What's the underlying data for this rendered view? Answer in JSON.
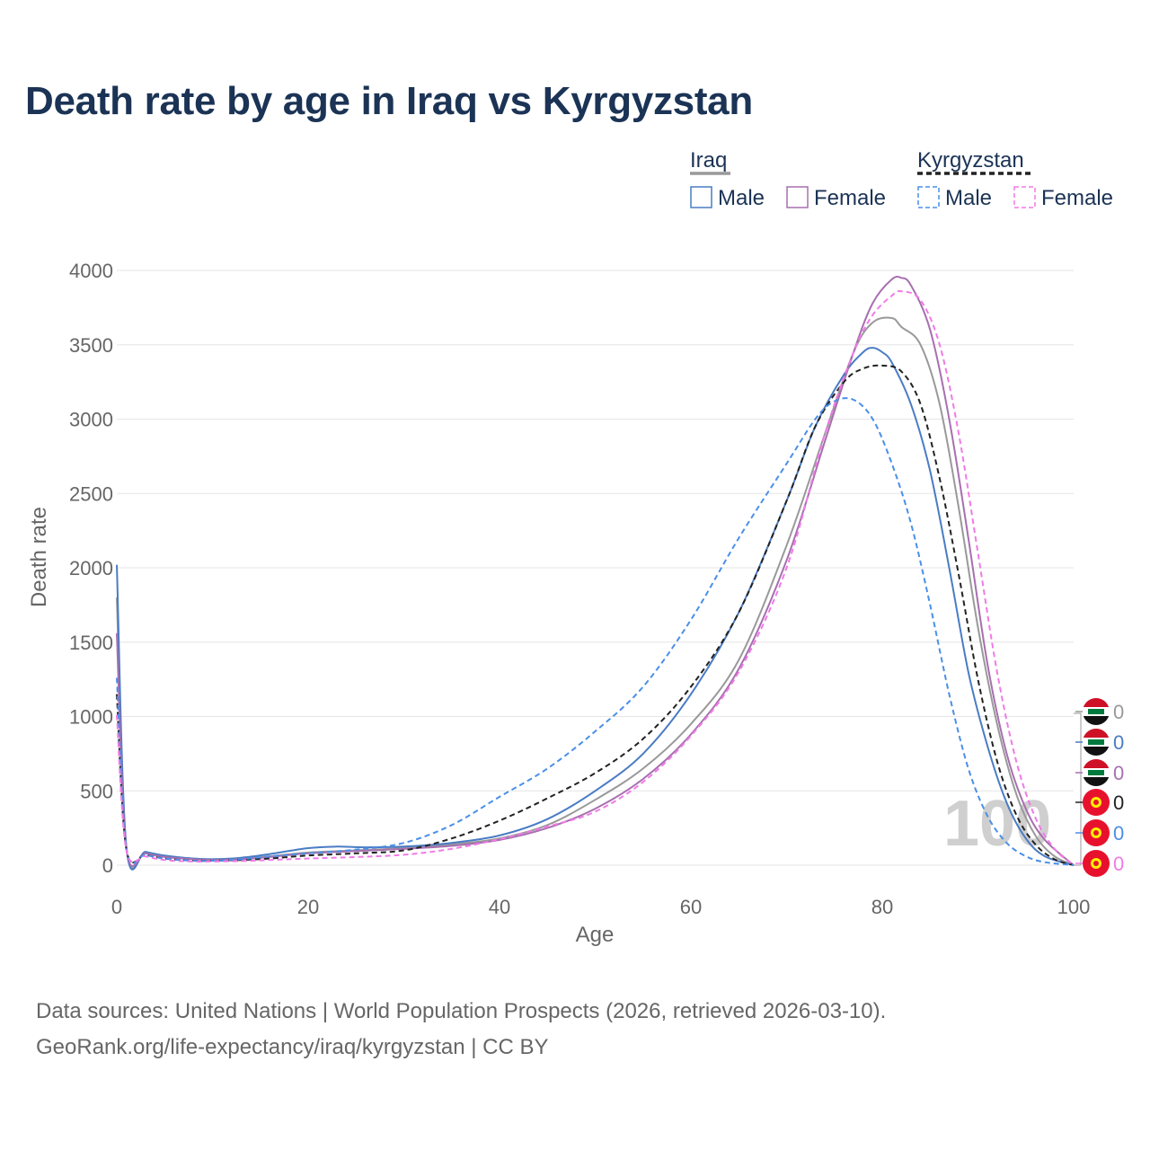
{
  "title": "Death rate by age in Iraq vs Kyrgyzstan",
  "footer": {
    "source": "Data sources: United Nations | World Population Prospects (2026, retrieved 2026-03-10).",
    "link": "GeoRank.org/life-expectancy/iraq/kyrgyzstan | CC BY"
  },
  "legend": {
    "groups": [
      {
        "label": "Iraq",
        "swatch_color": "#999999",
        "swatch_dash": "solid"
      },
      {
        "label": "Kyrgyzstan",
        "swatch_color": "#222222",
        "swatch_dash": "dashed"
      }
    ],
    "items": [
      {
        "label": "Male",
        "color": "#4a7cc4",
        "dash": "solid"
      },
      {
        "label": "Female",
        "color": "#a86fb0",
        "dash": "solid"
      },
      {
        "label": "Male",
        "color": "#4a8fe8",
        "dash": "dashed"
      },
      {
        "label": "Female",
        "color": "#f07ae6",
        "dash": "dashed"
      }
    ]
  },
  "year_label": "100",
  "chart_data": {
    "type": "line",
    "title": "Death rate by age in Iraq vs Kyrgyzstan",
    "xlabel": "Age",
    "ylabel": "Death rate",
    "xlim": [
      0,
      100
    ],
    "ylim": [
      0,
      4000
    ],
    "xticks": [
      0,
      20,
      40,
      60,
      80,
      100
    ],
    "yticks": [
      0,
      500,
      1000,
      1500,
      2000,
      2500,
      3000,
      3500,
      4000
    ],
    "grid": true,
    "series": [
      {
        "name": "Iraq",
        "color": "#999999",
        "dash": "solid",
        "end_label": "0",
        "flag": "iraq",
        "points": [
          [
            0,
            1800
          ],
          [
            1,
            115
          ],
          [
            3,
            85
          ],
          [
            5,
            60
          ],
          [
            8,
            45
          ],
          [
            10,
            40
          ],
          [
            13,
            45
          ],
          [
            16,
            60
          ],
          [
            20,
            85
          ],
          [
            25,
            100
          ],
          [
            30,
            115
          ],
          [
            35,
            140
          ],
          [
            40,
            180
          ],
          [
            45,
            270
          ],
          [
            50,
            440
          ],
          [
            55,
            650
          ],
          [
            60,
            950
          ],
          [
            65,
            1380
          ],
          [
            70,
            2150
          ],
          [
            74,
            2900
          ],
          [
            77,
            3450
          ],
          [
            79,
            3650
          ],
          [
            81,
            3680
          ],
          [
            82,
            3620
          ],
          [
            84,
            3500
          ],
          [
            86,
            3100
          ],
          [
            88,
            2400
          ],
          [
            90,
            1600
          ],
          [
            92,
            950
          ],
          [
            94,
            480
          ],
          [
            96,
            200
          ],
          [
            98,
            60
          ],
          [
            100,
            0
          ]
        ]
      },
      {
        "name": "Iraq Male",
        "color": "#4a7cc4",
        "dash": "solid",
        "end_label": "0",
        "flag": "iraq",
        "points": [
          [
            0,
            2020
          ],
          [
            1,
            120
          ],
          [
            3,
            90
          ],
          [
            5,
            65
          ],
          [
            8,
            45
          ],
          [
            10,
            40
          ],
          [
            13,
            50
          ],
          [
            16,
            75
          ],
          [
            20,
            115
          ],
          [
            23,
            125
          ],
          [
            26,
            120
          ],
          [
            30,
            125
          ],
          [
            35,
            150
          ],
          [
            40,
            200
          ],
          [
            45,
            310
          ],
          [
            50,
            500
          ],
          [
            55,
            750
          ],
          [
            60,
            1150
          ],
          [
            65,
            1700
          ],
          [
            70,
            2450
          ],
          [
            73,
            2950
          ],
          [
            76,
            3300
          ],
          [
            78,
            3450
          ],
          [
            79,
            3480
          ],
          [
            80,
            3450
          ],
          [
            81,
            3380
          ],
          [
            83,
            3100
          ],
          [
            85,
            2650
          ],
          [
            87,
            2000
          ],
          [
            89,
            1300
          ],
          [
            91,
            800
          ],
          [
            93,
            420
          ],
          [
            95,
            180
          ],
          [
            97,
            60
          ],
          [
            100,
            0
          ]
        ]
      },
      {
        "name": "Iraq Female",
        "color": "#a86fb0",
        "dash": "solid",
        "end_label": "0",
        "flag": "iraq",
        "points": [
          [
            0,
            1560
          ],
          [
            1,
            110
          ],
          [
            3,
            80
          ],
          [
            5,
            55
          ],
          [
            8,
            40
          ],
          [
            10,
            35
          ],
          [
            13,
            40
          ],
          [
            16,
            55
          ],
          [
            20,
            80
          ],
          [
            25,
            95
          ],
          [
            30,
            110
          ],
          [
            35,
            130
          ],
          [
            40,
            170
          ],
          [
            45,
            250
          ],
          [
            50,
            380
          ],
          [
            55,
            580
          ],
          [
            60,
            880
          ],
          [
            65,
            1320
          ],
          [
            70,
            2050
          ],
          [
            74,
            2850
          ],
          [
            77,
            3450
          ],
          [
            79,
            3780
          ],
          [
            81,
            3940
          ],
          [
            82,
            3950
          ],
          [
            83,
            3900
          ],
          [
            85,
            3600
          ],
          [
            87,
            3000
          ],
          [
            89,
            2200
          ],
          [
            91,
            1350
          ],
          [
            93,
            750
          ],
          [
            95,
            380
          ],
          [
            97,
            170
          ],
          [
            100,
            0
          ]
        ]
      },
      {
        "name": "Kyrgyzstan",
        "color": "#222222",
        "dash": "dashed",
        "end_label": "0",
        "flag": "kyrgyzstan",
        "points": [
          [
            0,
            1150
          ],
          [
            1,
            105
          ],
          [
            3,
            70
          ],
          [
            5,
            45
          ],
          [
            8,
            30
          ],
          [
            10,
            30
          ],
          [
            13,
            35
          ],
          [
            16,
            45
          ],
          [
            20,
            65
          ],
          [
            25,
            80
          ],
          [
            30,
            100
          ],
          [
            35,
            180
          ],
          [
            40,
            300
          ],
          [
            45,
            450
          ],
          [
            50,
            620
          ],
          [
            55,
            850
          ],
          [
            60,
            1200
          ],
          [
            65,
            1700
          ],
          [
            70,
            2450
          ],
          [
            73,
            2950
          ],
          [
            76,
            3250
          ],
          [
            78,
            3340
          ],
          [
            80,
            3360
          ],
          [
            82,
            3320
          ],
          [
            84,
            3100
          ],
          [
            86,
            2600
          ],
          [
            88,
            1950
          ],
          [
            90,
            1250
          ],
          [
            92,
            700
          ],
          [
            94,
            340
          ],
          [
            96,
            140
          ],
          [
            98,
            40
          ],
          [
            100,
            0
          ]
        ]
      },
      {
        "name": "Kyrgyzstan Male",
        "color": "#4a8fe8",
        "dash": "dashed",
        "end_label": "0",
        "flag": "kyrgyzstan",
        "points": [
          [
            0,
            1260
          ],
          [
            1,
            110
          ],
          [
            3,
            70
          ],
          [
            5,
            45
          ],
          [
            8,
            30
          ],
          [
            10,
            30
          ],
          [
            13,
            40
          ],
          [
            16,
            60
          ],
          [
            20,
            80
          ],
          [
            25,
            105
          ],
          [
            30,
            150
          ],
          [
            35,
            270
          ],
          [
            40,
            460
          ],
          [
            45,
            650
          ],
          [
            50,
            900
          ],
          [
            55,
            1200
          ],
          [
            60,
            1650
          ],
          [
            65,
            2200
          ],
          [
            70,
            2700
          ],
          [
            73,
            3000
          ],
          [
            75,
            3120
          ],
          [
            77,
            3130
          ],
          [
            79,
            3000
          ],
          [
            81,
            2700
          ],
          [
            83,
            2300
          ],
          [
            85,
            1750
          ],
          [
            87,
            1150
          ],
          [
            89,
            650
          ],
          [
            91,
            330
          ],
          [
            93,
            150
          ],
          [
            95,
            60
          ],
          [
            97,
            20
          ],
          [
            100,
            0
          ]
        ]
      },
      {
        "name": "Kyrgyzstan Female",
        "color": "#f07ae6",
        "dash": "dashed",
        "end_label": "0",
        "flag": "kyrgyzstan",
        "points": [
          [
            0,
            1010
          ],
          [
            1,
            100
          ],
          [
            3,
            60
          ],
          [
            5,
            35
          ],
          [
            8,
            25
          ],
          [
            10,
            25
          ],
          [
            13,
            28
          ],
          [
            16,
            35
          ],
          [
            20,
            45
          ],
          [
            25,
            55
          ],
          [
            30,
            70
          ],
          [
            35,
            110
          ],
          [
            40,
            175
          ],
          [
            45,
            260
          ],
          [
            50,
            360
          ],
          [
            55,
            560
          ],
          [
            60,
            870
          ],
          [
            65,
            1300
          ],
          [
            70,
            2000
          ],
          [
            74,
            2900
          ],
          [
            77,
            3450
          ],
          [
            79,
            3700
          ],
          [
            81,
            3830
          ],
          [
            82,
            3860
          ],
          [
            84,
            3800
          ],
          [
            86,
            3500
          ],
          [
            88,
            2900
          ],
          [
            90,
            2100
          ],
          [
            92,
            1300
          ],
          [
            94,
            700
          ],
          [
            96,
            320
          ],
          [
            98,
            110
          ],
          [
            100,
            0
          ]
        ]
      }
    ]
  }
}
